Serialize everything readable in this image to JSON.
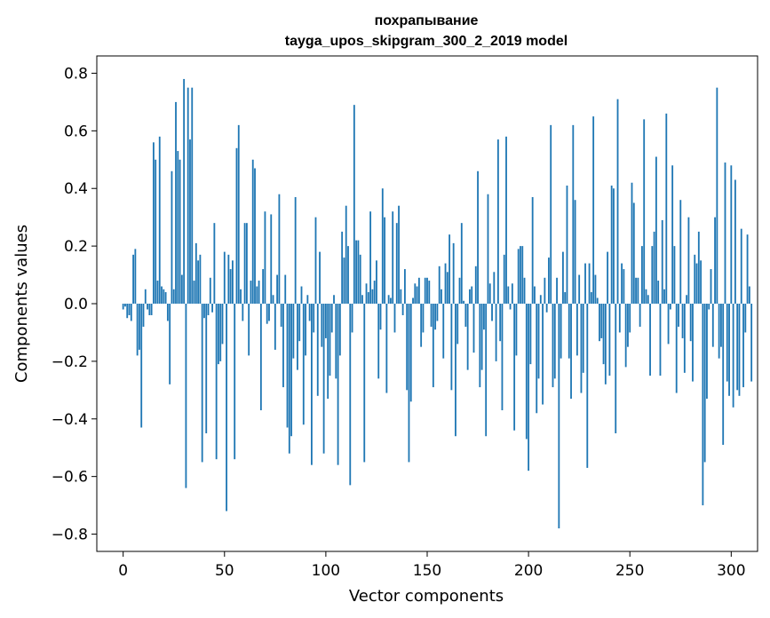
{
  "chart_data": {
    "type": "bar",
    "title_line1": "похрапывание",
    "title_line2": "tayga_upos_skipgram_300_2_2019 model",
    "xlabel": "Vector components",
    "ylabel": "Components values",
    "xlim": [
      -13,
      313
    ],
    "ylim": [
      -0.86,
      0.86
    ],
    "x_ticks": [
      0,
      50,
      100,
      150,
      200,
      250,
      300
    ],
    "x_tick_labels": [
      "0",
      "50",
      "100",
      "150",
      "200",
      "250",
      "300"
    ],
    "y_ticks": [
      -0.8,
      -0.6,
      -0.4,
      -0.2,
      0.0,
      0.2,
      0.4,
      0.6,
      0.8
    ],
    "y_tick_labels": [
      "−0.8",
      "−0.6",
      "−0.4",
      "−0.2",
      "0.0",
      "0.2",
      "0.4",
      "0.6",
      "0.8"
    ],
    "bar_color": "#1f77b4",
    "series": [
      {
        "name": "components",
        "values": [
          -0.02,
          -0.01,
          -0.05,
          -0.04,
          -0.06,
          0.17,
          0.19,
          -0.18,
          -0.16,
          -0.43,
          -0.08,
          0.05,
          -0.02,
          -0.04,
          -0.04,
          0.56,
          0.5,
          0.08,
          0.58,
          0.06,
          0.05,
          0.04,
          -0.06,
          -0.28,
          0.46,
          0.05,
          0.7,
          0.53,
          0.5,
          0.1,
          0.78,
          -0.64,
          0.75,
          0.57,
          0.75,
          0.08,
          0.21,
          0.15,
          0.17,
          -0.55,
          -0.05,
          -0.45,
          -0.04,
          0.09,
          -0.03,
          0.28,
          -0.54,
          -0.21,
          -0.2,
          -0.14,
          0.18,
          -0.72,
          0.17,
          0.12,
          0.15,
          -0.54,
          0.54,
          0.62,
          0.05,
          -0.06,
          0.28,
          0.28,
          -0.18,
          0.08,
          0.5,
          0.47,
          0.06,
          0.08,
          -0.37,
          0.12,
          0.32,
          -0.07,
          -0.06,
          0.31,
          0.03,
          -0.16,
          0.1,
          0.38,
          -0.08,
          -0.29,
          0.1,
          -0.43,
          -0.52,
          -0.46,
          -0.19,
          0.37,
          -0.23,
          -0.13,
          0.06,
          -0.42,
          -0.18,
          0.03,
          -0.06,
          -0.56,
          -0.1,
          0.3,
          -0.32,
          0.18,
          -0.15,
          -0.52,
          -0.12,
          -0.33,
          -0.25,
          -0.1,
          0.03,
          -0.26,
          -0.56,
          -0.18,
          0.25,
          0.16,
          0.34,
          0.2,
          -0.63,
          -0.1,
          0.69,
          0.22,
          0.22,
          0.17,
          0.03,
          -0.55,
          0.07,
          0.04,
          0.32,
          0.05,
          0.08,
          0.15,
          -0.26,
          -0.09,
          0.4,
          0.3,
          -0.31,
          0.03,
          0.02,
          0.32,
          -0.1,
          0.28,
          0.34,
          0.05,
          -0.04,
          0.12,
          -0.3,
          -0.55,
          -0.34,
          0.02,
          0.07,
          0.06,
          0.09,
          -0.15,
          -0.1,
          0.09,
          0.09,
          0.08,
          -0.08,
          -0.29,
          -0.09,
          -0.06,
          0.13,
          0.05,
          -0.19,
          0.14,
          0.11,
          0.24,
          -0.3,
          0.21,
          -0.46,
          -0.14,
          0.09,
          0.28,
          0.01,
          -0.08,
          -0.23,
          0.05,
          0.06,
          -0.17,
          0.13,
          0.46,
          -0.29,
          -0.23,
          -0.09,
          -0.46,
          0.38,
          0.07,
          -0.06,
          0.11,
          -0.2,
          0.57,
          -0.13,
          -0.37,
          0.17,
          0.58,
          0.06,
          -0.02,
          0.07,
          -0.44,
          -0.18,
          0.19,
          0.2,
          0.2,
          0.09,
          -0.47,
          -0.58,
          -0.21,
          0.37,
          0.06,
          -0.38,
          -0.26,
          0.03,
          -0.35,
          0.09,
          -0.03,
          0.16,
          0.62,
          -0.29,
          -0.26,
          0.09,
          -0.78,
          -0.19,
          0.18,
          0.04,
          0.41,
          -0.19,
          -0.33,
          0.62,
          0.36,
          -0.18,
          0.1,
          -0.31,
          -0.24,
          0.14,
          -0.57,
          0.14,
          0.04,
          0.65,
          0.1,
          0.02,
          -0.13,
          -0.12,
          -0.21,
          -0.28,
          0.18,
          -0.25,
          0.41,
          0.4,
          -0.45,
          0.71,
          -0.1,
          0.14,
          0.12,
          -0.22,
          -0.15,
          -0.1,
          0.42,
          0.35,
          0.09,
          0.09,
          -0.08,
          0.2,
          0.64,
          0.05,
          0.03,
          -0.25,
          0.2,
          0.25,
          0.51,
          0.08,
          -0.25,
          0.29,
          0.05,
          0.66,
          -0.14,
          -0.02,
          0.48,
          0.2,
          -0.31,
          -0.08,
          0.36,
          -0.12,
          -0.24,
          0.03,
          0.3,
          -0.13,
          -0.27,
          0.17,
          0.14,
          0.25,
          0.15,
          -0.7,
          -0.55,
          -0.33,
          -0.02,
          0.12,
          -0.15,
          0.3,
          0.75,
          -0.19,
          -0.15,
          -0.49,
          0.49,
          -0.27,
          -0.32,
          0.48,
          -0.36,
          0.43,
          -0.3,
          -0.32,
          0.26,
          -0.29,
          -0.1,
          0.24,
          0.06,
          -0.27
        ]
      }
    ]
  }
}
